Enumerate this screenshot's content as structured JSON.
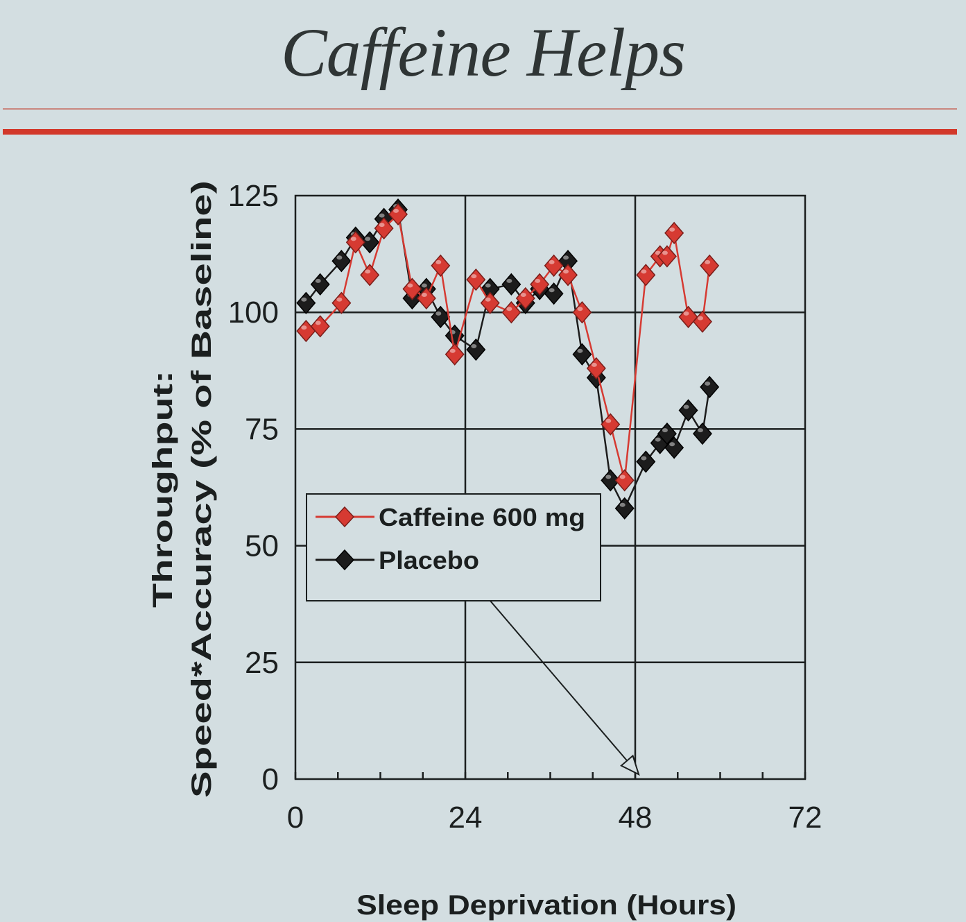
{
  "slide": {
    "title": "Caffeine Helps"
  },
  "chart_data": {
    "type": "line",
    "xlabel": "Sleep Deprivation (Hours)",
    "ylabel_line1": "Throughput:",
    "ylabel_line2": "Speed*Accuracy (% of Baseline)",
    "xlim": [
      0,
      72
    ],
    "ylim": [
      0,
      125
    ],
    "xticks": [
      0,
      24,
      48,
      72
    ],
    "yticks": [
      0,
      25,
      50,
      75,
      100,
      125
    ],
    "grid": true,
    "legend_position": "left-center",
    "series": [
      {
        "name": "Caffeine 600 mg",
        "color": "#d63a32",
        "marker": "diamond",
        "x": [
          1.5,
          3.5,
          6.5,
          8.5,
          10.5,
          12.5,
          14.5,
          16.5,
          18.5,
          20.5,
          22.5,
          25.5,
          27.5,
          30.5,
          32.5,
          34.5,
          36.5,
          38.5,
          40.5,
          42.5,
          44.5,
          46.5,
          49.5,
          51.5,
          52.5,
          53.5,
          55.5,
          57.5,
          58.5
        ],
        "y": [
          96,
          97,
          102,
          115,
          108,
          118,
          121,
          105,
          103,
          110,
          91,
          107,
          102,
          100,
          103,
          106,
          110,
          108,
          100,
          88,
          76,
          64,
          108,
          112,
          112,
          117,
          99,
          98,
          110
        ]
      },
      {
        "name": "Placebo",
        "color": "#1c1c1c",
        "marker": "diamond",
        "x": [
          1.5,
          3.5,
          6.5,
          8.5,
          10.5,
          12.5,
          14.5,
          16.5,
          18.5,
          20.5,
          22.5,
          25.5,
          27.5,
          30.5,
          32.5,
          34.5,
          36.5,
          38.5,
          40.5,
          42.5,
          44.5,
          46.5,
          49.5,
          51.5,
          52.5,
          53.5,
          55.5,
          57.5,
          58.5
        ],
        "y": [
          102,
          106,
          111,
          116,
          115,
          120,
          122,
          103,
          105,
          99,
          95,
          92,
          105,
          106,
          102,
          105,
          104,
          111,
          91,
          86,
          64,
          58,
          68,
          72,
          74,
          71,
          79,
          74,
          84
        ]
      }
    ],
    "annotation_arrow": {
      "from": [
        26.5,
        40
      ],
      "to": [
        48.5,
        1
      ]
    }
  }
}
